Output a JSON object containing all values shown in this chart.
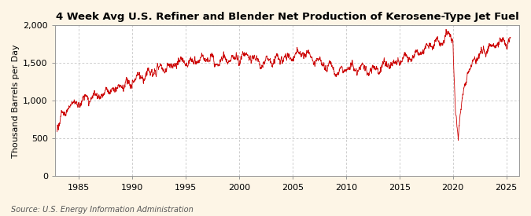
{
  "title": "4 Week Avg U.S. Refiner and Blender Net Production of Kerosene-Type Jet Fuel",
  "ylabel": "Thousand Barrels per Day",
  "source": "Source: U.S. Energy Information Administration",
  "line_color": "#cc0000",
  "background_color": "#fdf5e6",
  "plot_bg_color": "#ffffff",
  "grid_color": "#bbbbbb",
  "ylim": [
    0,
    2000
  ],
  "yticks": [
    0,
    500,
    1000,
    1500,
    2000
  ],
  "xlim_start": 1982.8,
  "xlim_end": 2026.2,
  "xticks": [
    1985,
    1990,
    1995,
    2000,
    2005,
    2010,
    2015,
    2020,
    2025
  ],
  "title_fontsize": 9.5,
  "ylabel_fontsize": 8,
  "tick_fontsize": 8,
  "source_fontsize": 7,
  "linewidth": 0.6
}
